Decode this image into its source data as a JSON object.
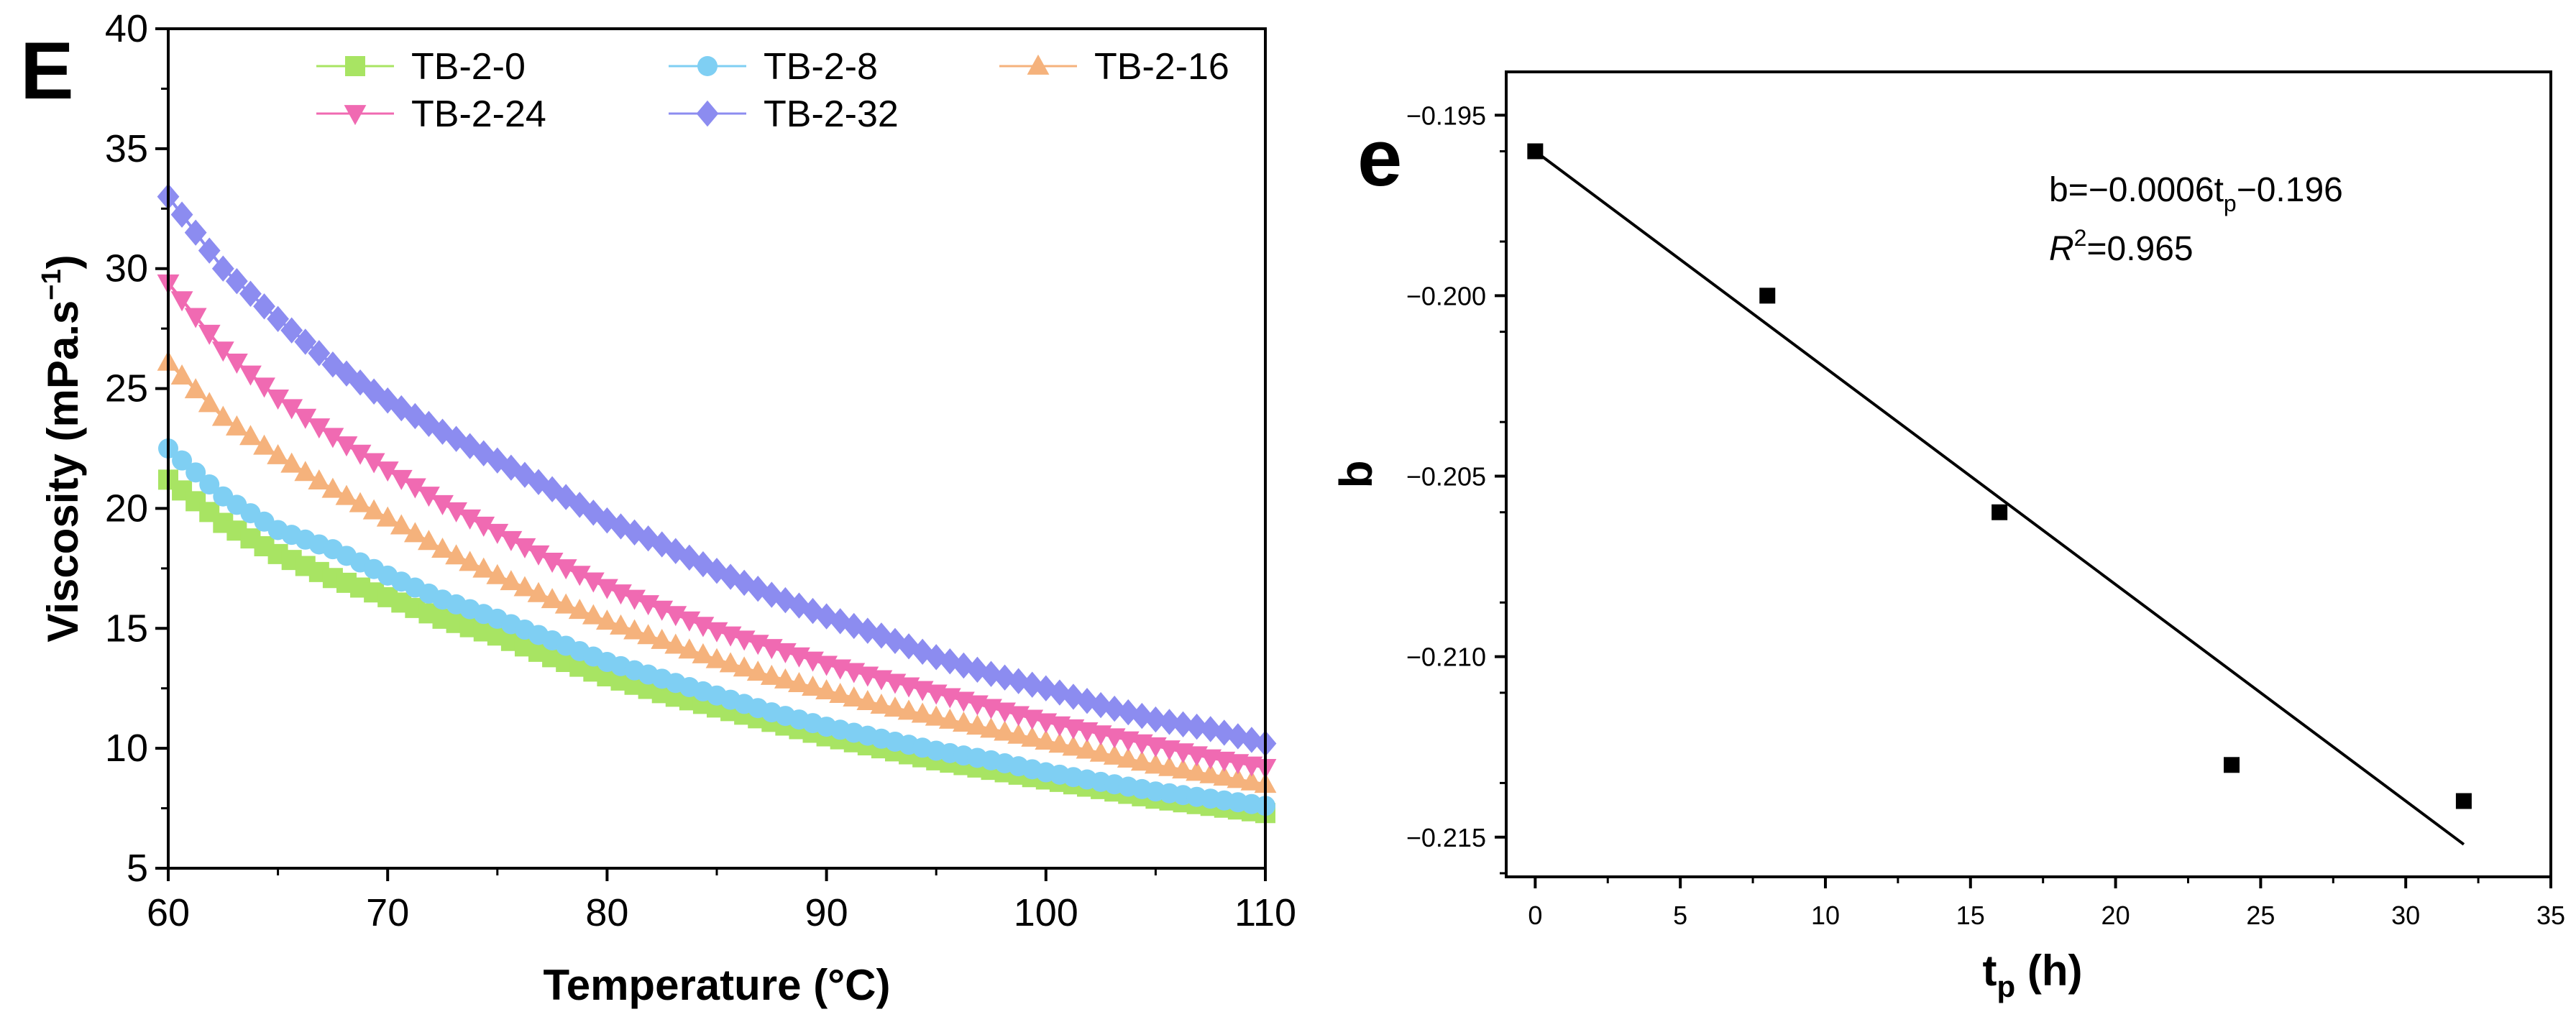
{
  "chart_data": [
    {
      "type": "line",
      "panel_label": "E",
      "title": "",
      "xlabel": "Temperature (°C)",
      "ylabel": "Viscosity (mPa.s",
      "ylabel_sup": "−1",
      "ylabel_close": ")",
      "xlim": [
        60,
        110
      ],
      "ylim": [
        5,
        40
      ],
      "xticks": [
        60,
        70,
        80,
        90,
        100,
        110
      ],
      "yticks": [
        5,
        10,
        15,
        20,
        25,
        30,
        35,
        40
      ],
      "xtick_labels": [
        "60",
        "70",
        "80",
        "90",
        "100",
        "110"
      ],
      "ytick_labels": [
        "5",
        "10",
        "15",
        "20",
        "25",
        "30",
        "35",
        "40"
      ],
      "legend_position": "top",
      "x": [
        60,
        62.5,
        65,
        67.5,
        70,
        72.5,
        75,
        77.5,
        80,
        82.5,
        85,
        87.5,
        90,
        92.5,
        95,
        97.5,
        100,
        102.5,
        105,
        107.5,
        110
      ],
      "series": [
        {
          "name": "TB-2-0",
          "marker": "square",
          "color": "#a8e463",
          "values": [
            21.2,
            19.4,
            18.1,
            17.1,
            16.3,
            15.4,
            14.7,
            13.8,
            13.0,
            12.3,
            11.7,
            11.1,
            10.5,
            10.0,
            9.5,
            9.1,
            8.7,
            8.3,
            7.9,
            7.6,
            7.3
          ]
        },
        {
          "name": "TB-2-8",
          "marker": "circle",
          "color": "#7fcff3",
          "values": [
            22.5,
            20.5,
            19.1,
            18.3,
            17.2,
            16.2,
            15.4,
            14.5,
            13.6,
            12.9,
            12.2,
            11.5,
            10.9,
            10.4,
            9.9,
            9.5,
            9.0,
            8.6,
            8.2,
            7.9,
            7.6
          ]
        },
        {
          "name": "TB-2-16",
          "marker": "triangle-up",
          "color": "#f5b27c",
          "values": [
            26.1,
            23.8,
            22.2,
            20.8,
            19.6,
            18.3,
            17.2,
            16.2,
            15.3,
            14.5,
            13.7,
            13.0,
            12.4,
            11.8,
            11.3,
            10.8,
            10.3,
            9.8,
            9.3,
            8.9,
            8.5
          ]
        },
        {
          "name": "TB-2-24",
          "marker": "triangle-down",
          "color": "#f06ab2",
          "values": [
            29.4,
            26.6,
            24.6,
            23.0,
            21.6,
            20.2,
            19.0,
            17.8,
            16.7,
            15.8,
            14.9,
            14.2,
            13.5,
            12.9,
            12.3,
            11.7,
            11.1,
            10.6,
            10.1,
            9.6,
            9.2
          ]
        },
        {
          "name": "TB-2-32",
          "marker": "diamond",
          "color": "#8c8cf0",
          "values": [
            33.0,
            30.0,
            27.9,
            26.0,
            24.5,
            23.2,
            22.0,
            20.8,
            19.5,
            18.5,
            17.4,
            16.4,
            15.5,
            14.7,
            13.8,
            13.1,
            12.5,
            11.8,
            11.2,
            10.8,
            10.2
          ]
        }
      ]
    },
    {
      "type": "scatter",
      "panel_label": "e",
      "title": "",
      "xlabel_main": "t",
      "xlabel_sub": "p",
      "xlabel_unit": " (h)",
      "ylabel": "b",
      "xlim": [
        -1,
        35
      ],
      "ylim": [
        -0.2161,
        -0.1938
      ],
      "xticks": [
        0,
        5,
        10,
        15,
        20,
        25,
        30,
        35
      ],
      "yticks": [
        -0.195,
        -0.2,
        -0.205,
        -0.21,
        -0.215
      ],
      "xtick_labels": [
        "0",
        "5",
        "10",
        "15",
        "20",
        "25",
        "30",
        "35"
      ],
      "ytick_labels": [
        "−0.195",
        "−0.200",
        "−0.205",
        "−0.210",
        "−0.215"
      ],
      "points": {
        "x": [
          0,
          8,
          16,
          24,
          32
        ],
        "y": [
          -0.196,
          -0.2,
          -0.206,
          -0.213,
          -0.214
        ]
      },
      "fit_line": {
        "x": [
          0,
          32
        ],
        "slope": -0.0006,
        "intercept": -0.196
      },
      "annotation": {
        "equation_pre": "b=−0.0006t",
        "equation_sub": "p",
        "equation_post": "−0.196",
        "r2_label": "R",
        "r2_sup": "2",
        "r2_value": "=0.965"
      }
    }
  ]
}
